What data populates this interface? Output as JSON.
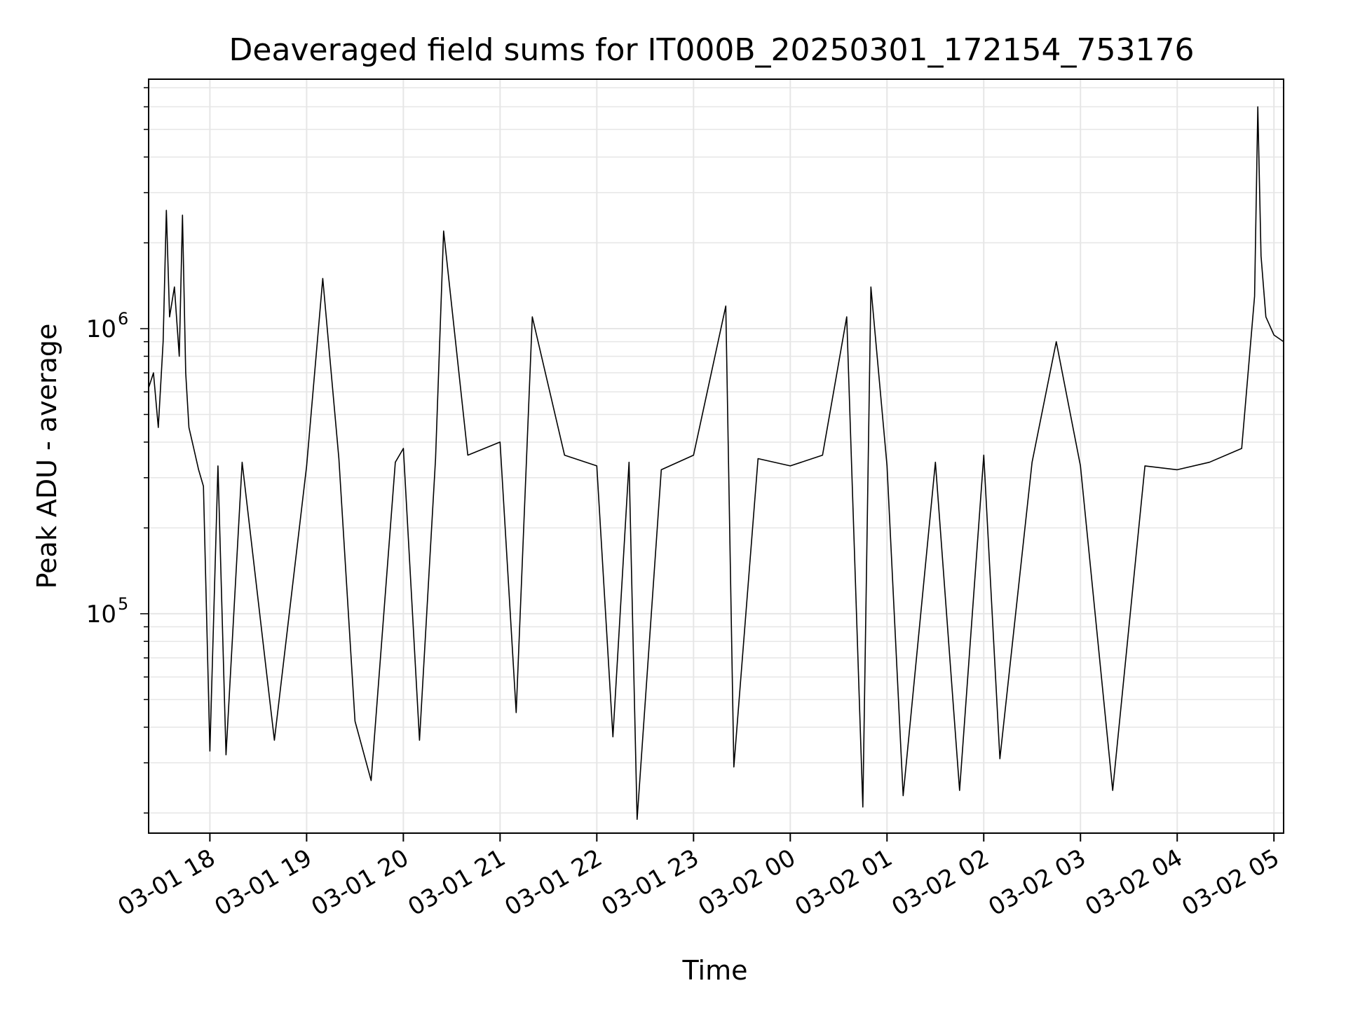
{
  "chart_data": {
    "type": "line",
    "title": "Deaveraged field sums for IT000B_20250301_172154_753176",
    "xlabel": "Time",
    "ylabel": "Peak ADU - average",
    "y_scale": "log",
    "ylim": [
      17000,
      7500000
    ],
    "xlim": [
      "2025-03-01 17:22",
      "2025-03-02 05:06"
    ],
    "grid": true,
    "line_color": "#000000",
    "x_ticks": [
      {
        "time": "2025-03-01 18:00",
        "label": "03-01 18"
      },
      {
        "time": "2025-03-01 19:00",
        "label": "03-01 19"
      },
      {
        "time": "2025-03-01 20:00",
        "label": "03-01 20"
      },
      {
        "time": "2025-03-01 21:00",
        "label": "03-01 21"
      },
      {
        "time": "2025-03-01 22:00",
        "label": "03-01 22"
      },
      {
        "time": "2025-03-01 23:00",
        "label": "03-01 23"
      },
      {
        "time": "2025-03-02 00:00",
        "label": "03-02 00"
      },
      {
        "time": "2025-03-02 01:00",
        "label": "03-02 01"
      },
      {
        "time": "2025-03-02 02:00",
        "label": "03-02 02"
      },
      {
        "time": "2025-03-02 03:00",
        "label": "03-02 03"
      },
      {
        "time": "2025-03-02 04:00",
        "label": "03-02 04"
      },
      {
        "time": "2025-03-02 05:00",
        "label": "03-02 05"
      }
    ],
    "y_ticks": [
      {
        "value": 100000,
        "base": "10",
        "exp": "5"
      },
      {
        "value": 1000000,
        "base": "10",
        "exp": "6"
      }
    ],
    "series": [
      {
        "points": [
          [
            "2025-03-01 17:22",
            620000
          ],
          [
            "2025-03-01 17:25",
            700000
          ],
          [
            "2025-03-01 17:28",
            450000
          ],
          [
            "2025-03-01 17:31",
            900000
          ],
          [
            "2025-03-01 17:33",
            2600000
          ],
          [
            "2025-03-01 17:35",
            1100000
          ],
          [
            "2025-03-01 17:38",
            1400000
          ],
          [
            "2025-03-01 17:41",
            800000
          ],
          [
            "2025-03-01 17:43",
            2500000
          ],
          [
            "2025-03-01 17:45",
            700000
          ],
          [
            "2025-03-01 17:47",
            450000
          ],
          [
            "2025-03-01 17:50",
            380000
          ],
          [
            "2025-03-01 17:53",
            320000
          ],
          [
            "2025-03-01 17:56",
            280000
          ],
          [
            "2025-03-01 18:00",
            33000
          ],
          [
            "2025-03-01 18:05",
            330000
          ],
          [
            "2025-03-01 18:10",
            32000
          ],
          [
            "2025-03-01 18:20",
            340000
          ],
          [
            "2025-03-01 18:40",
            36000
          ],
          [
            "2025-03-01 19:00",
            330000
          ],
          [
            "2025-03-01 19:10",
            1500000
          ],
          [
            "2025-03-01 19:20",
            350000
          ],
          [
            "2025-03-01 19:30",
            42000
          ],
          [
            "2025-03-01 19:40",
            26000
          ],
          [
            "2025-03-01 19:55",
            340000
          ],
          [
            "2025-03-01 20:00",
            380000
          ],
          [
            "2025-03-01 20:10",
            36000
          ],
          [
            "2025-03-01 20:20",
            350000
          ],
          [
            "2025-03-01 20:25",
            2200000
          ],
          [
            "2025-03-01 20:40",
            360000
          ],
          [
            "2025-03-01 21:00",
            400000
          ],
          [
            "2025-03-01 21:10",
            45000
          ],
          [
            "2025-03-01 21:20",
            1100000
          ],
          [
            "2025-03-01 21:40",
            360000
          ],
          [
            "2025-03-01 22:00",
            330000
          ],
          [
            "2025-03-01 22:10",
            37000
          ],
          [
            "2025-03-01 22:20",
            340000
          ],
          [
            "2025-03-01 22:25",
            19000
          ],
          [
            "2025-03-01 22:40",
            320000
          ],
          [
            "2025-03-01 23:00",
            360000
          ],
          [
            "2025-03-01 23:20",
            1200000
          ],
          [
            "2025-03-01 23:25",
            29000
          ],
          [
            "2025-03-01 23:40",
            350000
          ],
          [
            "2025-03-02 00:00",
            330000
          ],
          [
            "2025-03-02 00:20",
            360000
          ],
          [
            "2025-03-02 00:35",
            1100000
          ],
          [
            "2025-03-02 00:45",
            21000
          ],
          [
            "2025-03-02 00:50",
            1400000
          ],
          [
            "2025-03-02 01:00",
            330000
          ],
          [
            "2025-03-02 01:10",
            23000
          ],
          [
            "2025-03-02 01:30",
            340000
          ],
          [
            "2025-03-02 01:45",
            24000
          ],
          [
            "2025-03-02 02:00",
            360000
          ],
          [
            "2025-03-02 02:10",
            31000
          ],
          [
            "2025-03-02 02:30",
            340000
          ],
          [
            "2025-03-02 02:45",
            900000
          ],
          [
            "2025-03-02 03:00",
            330000
          ],
          [
            "2025-03-02 03:20",
            24000
          ],
          [
            "2025-03-02 03:40",
            330000
          ],
          [
            "2025-03-02 04:00",
            320000
          ],
          [
            "2025-03-02 04:20",
            340000
          ],
          [
            "2025-03-02 04:40",
            380000
          ],
          [
            "2025-03-02 04:48",
            1300000
          ],
          [
            "2025-03-02 04:50",
            6000000
          ],
          [
            "2025-03-02 04:52",
            1800000
          ],
          [
            "2025-03-02 04:55",
            1100000
          ],
          [
            "2025-03-02 05:00",
            950000
          ],
          [
            "2025-03-02 05:06",
            900000
          ]
        ]
      }
    ]
  }
}
